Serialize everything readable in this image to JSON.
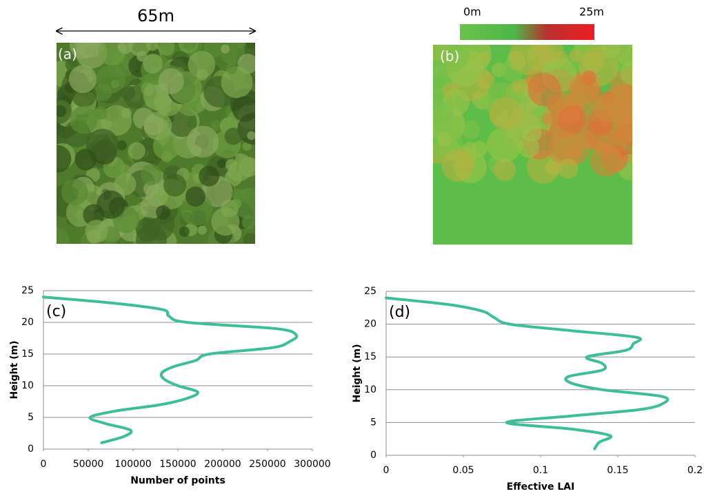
{
  "figure": {
    "scale_label": "65m",
    "panel_a": "(a)",
    "panel_b": "(b)",
    "colorbar_min": "0m",
    "colorbar_max": "25m"
  },
  "chart_data": [
    {
      "type": "line",
      "label": "(c)",
      "x_label": "Number of points",
      "y_label": "Height (m)",
      "x": [
        65000,
        90000,
        97000,
        70000,
        52000,
        80000,
        130000,
        160000,
        172000,
        150000,
        135000,
        132000,
        145000,
        170000,
        185000,
        255000,
        275000,
        282000,
        260000,
        160000,
        140000,
        133000,
        80000,
        0
      ],
      "series": [
        {
          "color": "#3cbf98",
          "values": [
            1,
            2,
            3,
            4,
            5,
            6,
            7,
            8,
            9,
            10,
            11,
            12,
            13,
            14,
            15,
            16,
            17,
            18,
            19,
            20,
            21,
            22,
            23,
            24
          ]
        }
      ],
      "xlim": [
        0,
        300000
      ],
      "xticks": [
        0,
        50000,
        100000,
        150000,
        200000,
        250000,
        300000
      ],
      "ylim": [
        0,
        25
      ],
      "yticks": [
        0,
        5,
        10,
        15,
        20,
        25
      ],
      "grid": true
    },
    {
      "type": "line",
      "label": "(d)",
      "x_label": "Effective LAI",
      "y_label": "Height (m)",
      "x": [
        0.135,
        0.138,
        0.145,
        0.12,
        0.078,
        0.12,
        0.165,
        0.18,
        0.178,
        0.14,
        0.12,
        0.118,
        0.14,
        0.14,
        0.13,
        0.155,
        0.16,
        0.162,
        0.12,
        0.08,
        0.07,
        0.062,
        0.04,
        0
      ],
      "series": [
        {
          "color": "#3cbf98",
          "values": [
            1,
            2,
            3,
            4,
            5,
            6,
            7,
            8,
            9,
            10,
            11,
            12,
            13,
            14,
            15,
            16,
            17,
            18,
            19,
            20,
            21,
            22,
            23,
            24
          ]
        }
      ],
      "xlim": [
        0,
        0.2
      ],
      "xticks": [
        0,
        0.05,
        0.1,
        0.15,
        0.2
      ],
      "ylim": [
        0,
        25
      ],
      "yticks": [
        0,
        5,
        10,
        15,
        20,
        25
      ],
      "grid": true
    }
  ]
}
